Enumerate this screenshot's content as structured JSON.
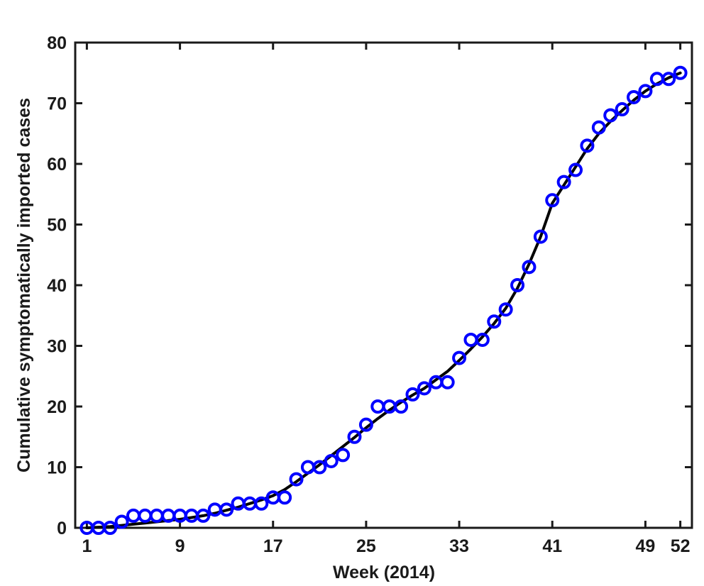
{
  "chart_data": {
    "type": "scatter",
    "title": "",
    "xlabel": "Week (2014)",
    "ylabel": "Cumulative symptomatically imported cases",
    "xlim": [
      0,
      53
    ],
    "ylim": [
      0,
      80
    ],
    "x_ticks": [
      1,
      9,
      17,
      25,
      33,
      41,
      49,
      52
    ],
    "y_ticks": [
      0,
      10,
      20,
      30,
      40,
      50,
      60,
      70,
      80
    ],
    "grid": false,
    "legend": "none",
    "colors": {
      "points": "#0000ff",
      "fit_line": "#000000",
      "axes": "#1a1a1a"
    },
    "series": [
      {
        "type": "scatter",
        "marker": "open-circle",
        "x": [
          1,
          2,
          3,
          4,
          5,
          6,
          7,
          8,
          9,
          10,
          11,
          12,
          13,
          14,
          15,
          16,
          17,
          18,
          19,
          20,
          21,
          22,
          23,
          24,
          25,
          26,
          27,
          28,
          29,
          30,
          31,
          32,
          33,
          34,
          35,
          36,
          37,
          38,
          39,
          40,
          41,
          42,
          43,
          44,
          45,
          46,
          47,
          48,
          49,
          50,
          51,
          52
        ],
        "y": [
          0,
          0,
          0,
          1,
          2,
          2,
          2,
          2,
          2,
          2,
          2,
          3,
          3,
          4,
          4,
          4,
          5,
          5,
          8,
          10,
          10,
          11,
          12,
          15,
          17,
          20,
          20,
          20,
          22,
          23,
          24,
          24,
          28,
          31,
          31,
          34,
          36,
          40,
          43,
          48,
          54,
          57,
          59,
          63,
          66,
          68,
          69,
          71,
          72,
          74,
          74,
          75
        ]
      },
      {
        "type": "line",
        "x": [
          1,
          2,
          3,
          4,
          5,
          6,
          7,
          8,
          9,
          10,
          11,
          12,
          13,
          14,
          15,
          16,
          17,
          18,
          19,
          20,
          21,
          22,
          23,
          24,
          25,
          26,
          27,
          28,
          29,
          30,
          31,
          32,
          33,
          34,
          35,
          36,
          37,
          38,
          39,
          40,
          41,
          42,
          43,
          44,
          45,
          46,
          47,
          48,
          49,
          50,
          51,
          52
        ],
        "y": [
          0,
          0.1,
          0.2,
          0.4,
          0.6,
          0.8,
          1.0,
          1.2,
          1.4,
          1.7,
          2.0,
          2.4,
          2.9,
          3.4,
          4.0,
          4.6,
          5.3,
          6.3,
          7.6,
          9.0,
          10.4,
          11.9,
          13.4,
          14.9,
          16.5,
          18.0,
          19.4,
          20.7,
          21.9,
          23.0,
          24.4,
          25.8,
          27.6,
          29.5,
          31.5,
          33.7,
          36.2,
          39.5,
          43.5,
          48.0,
          53.5,
          56.5,
          59.5,
          62.5,
          65.0,
          67.0,
          68.8,
          70.5,
          72.0,
          73.2,
          74.2,
          75.0
        ]
      }
    ]
  }
}
